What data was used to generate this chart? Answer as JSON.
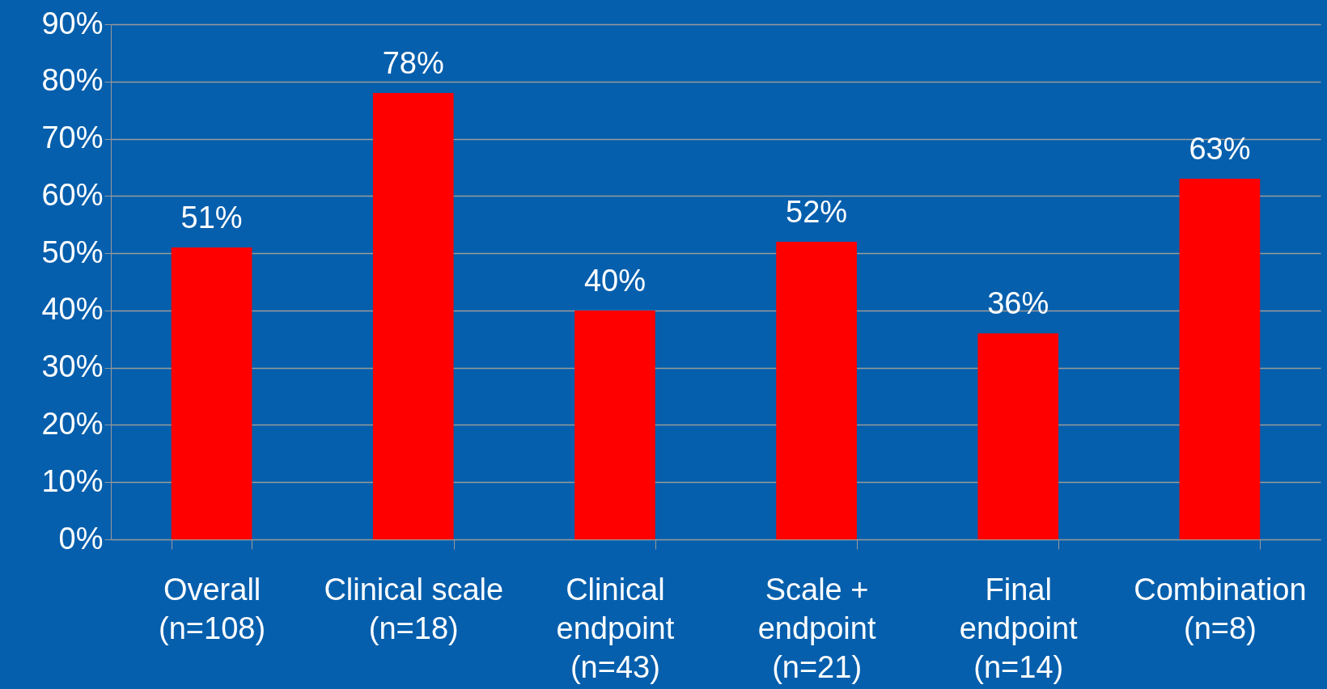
{
  "chart_data": {
    "type": "bar",
    "categories": [
      "Overall\n(n=108)",
      "Clinical scale\n(n=18)",
      "Clinical\nendpoint\n(n=43)",
      "Scale +\nendpoint\n(n=21)",
      "Final\nendpoint\n(n=14)",
      "Combination\n(n=8)"
    ],
    "values": [
      51,
      78,
      40,
      52,
      36,
      63
    ],
    "value_labels": [
      "51%",
      "78%",
      "40%",
      "52%",
      "36%",
      "63%"
    ],
    "color": "#ff0000",
    "ylim": [
      0,
      90
    ],
    "yticks": [
      {
        "value": 0,
        "label": "0%"
      },
      {
        "value": 10,
        "label": "10%"
      },
      {
        "value": 20,
        "label": "20%"
      },
      {
        "value": 30,
        "label": "30%"
      },
      {
        "value": 40,
        "label": "40%"
      },
      {
        "value": 50,
        "label": "50%"
      },
      {
        "value": 60,
        "label": "60%"
      },
      {
        "value": 70,
        "label": "70%"
      },
      {
        "value": 80,
        "label": "80%"
      },
      {
        "value": 90,
        "label": "90%"
      }
    ],
    "grid": true
  }
}
